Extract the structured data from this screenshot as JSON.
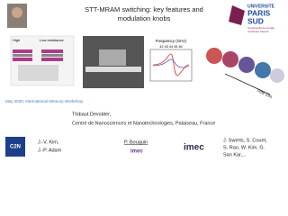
{
  "header": {
    "title_line1": "STT-MRAM switching: key features and",
    "title_line2": "modulation knobs",
    "logo_line1": "UNIVERSITE",
    "logo_line2": "PARIS",
    "logo_line3": "SUD",
    "logo_tagline1": "Comprendre le monde,",
    "logo_tagline2": "construire l'avenir"
  },
  "figures": {
    "state_high": "High",
    "state_low": "Low resistance",
    "freq_label": "Frequency (GHz)",
    "freq_ticks": "42  43  44  45  46",
    "time_label": "Time (ns)"
  },
  "event": "May 2020, International Memory Workshop",
  "author": {
    "name": "Thibaut Devolder,",
    "affiliation": "Centre de Nanosciences et Nanotechnologies, Palaiseau, France"
  },
  "collaborators": {
    "c2n_logo": "C2N",
    "c2n_line1": "J.-V. Kim,",
    "c2n_line2": "J.-P. Adam",
    "mid_name": "P. Bouquin",
    "mid_logo": "imec",
    "imec_logo": "imec",
    "imec_line1": "J. Swerts, S. Couet,",
    "imec_line2": "S. Rao, W. Kim, G.",
    "imec_line3": "San Kar,..."
  }
}
